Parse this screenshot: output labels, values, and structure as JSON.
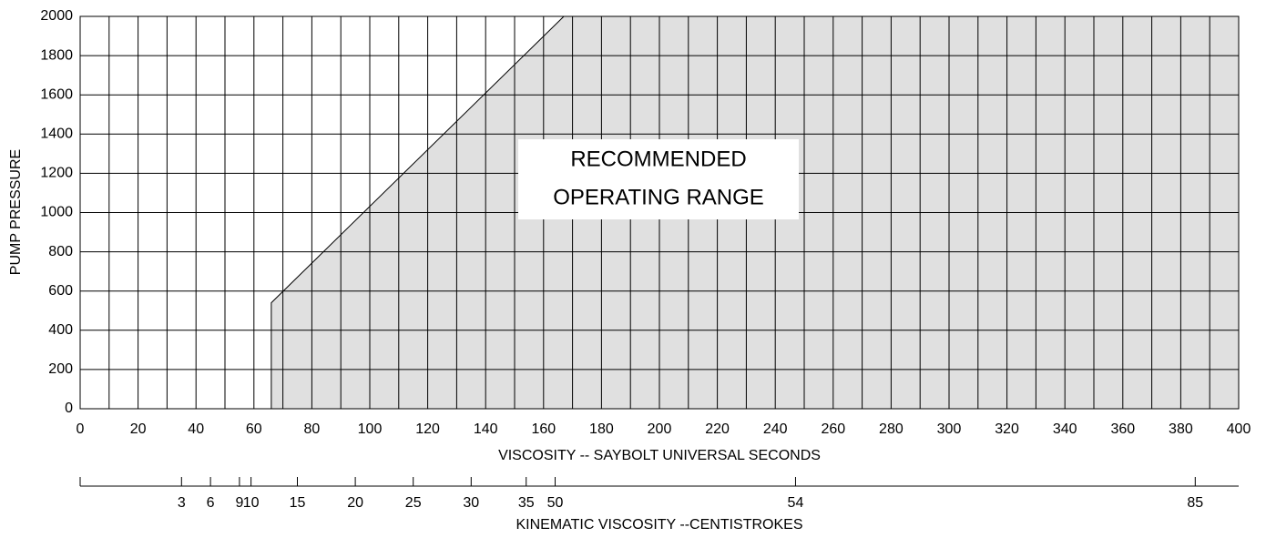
{
  "chart_data": {
    "type": "area",
    "annotation": [
      "RECOMMENDED",
      "OPERATING RANGE"
    ],
    "x_label": "VISCOSITY -- SAYBOLT UNIVERSAL SECONDS",
    "y_label": "PUMP PRESSURE",
    "x2_label": "KINEMATIC VISCOSITY --CENTISTROKES",
    "x": [
      66,
      66,
      167,
      400,
      400
    ],
    "values": [
      0,
      540,
      2000,
      2000,
      0
    ],
    "color": "#e0e0e0",
    "xlim": [
      0,
      400
    ],
    "ylim": [
      0,
      2000
    ],
    "xticks": [
      0,
      20,
      40,
      60,
      80,
      100,
      120,
      140,
      160,
      180,
      200,
      220,
      240,
      260,
      280,
      300,
      320,
      340,
      360,
      380,
      400
    ],
    "yticks": [
      0,
      200,
      400,
      600,
      800,
      1000,
      1200,
      1400,
      1600,
      1800,
      2000
    ],
    "x2ticks": [
      {
        "value": 35,
        "label": "3"
      },
      {
        "value": 45,
        "label": "6"
      },
      {
        "value": 55,
        "label": "9"
      },
      {
        "value": 59,
        "label": "10"
      },
      {
        "value": 75,
        "label": "15"
      },
      {
        "value": 95,
        "label": "20"
      },
      {
        "value": 115,
        "label": "25"
      },
      {
        "value": 135,
        "label": "30"
      },
      {
        "value": 154,
        "label": "35"
      },
      {
        "value": 164,
        "label": "50"
      },
      {
        "value": 247,
        "label": "54"
      },
      {
        "value": 385,
        "label": "85"
      }
    ],
    "grid": true
  }
}
